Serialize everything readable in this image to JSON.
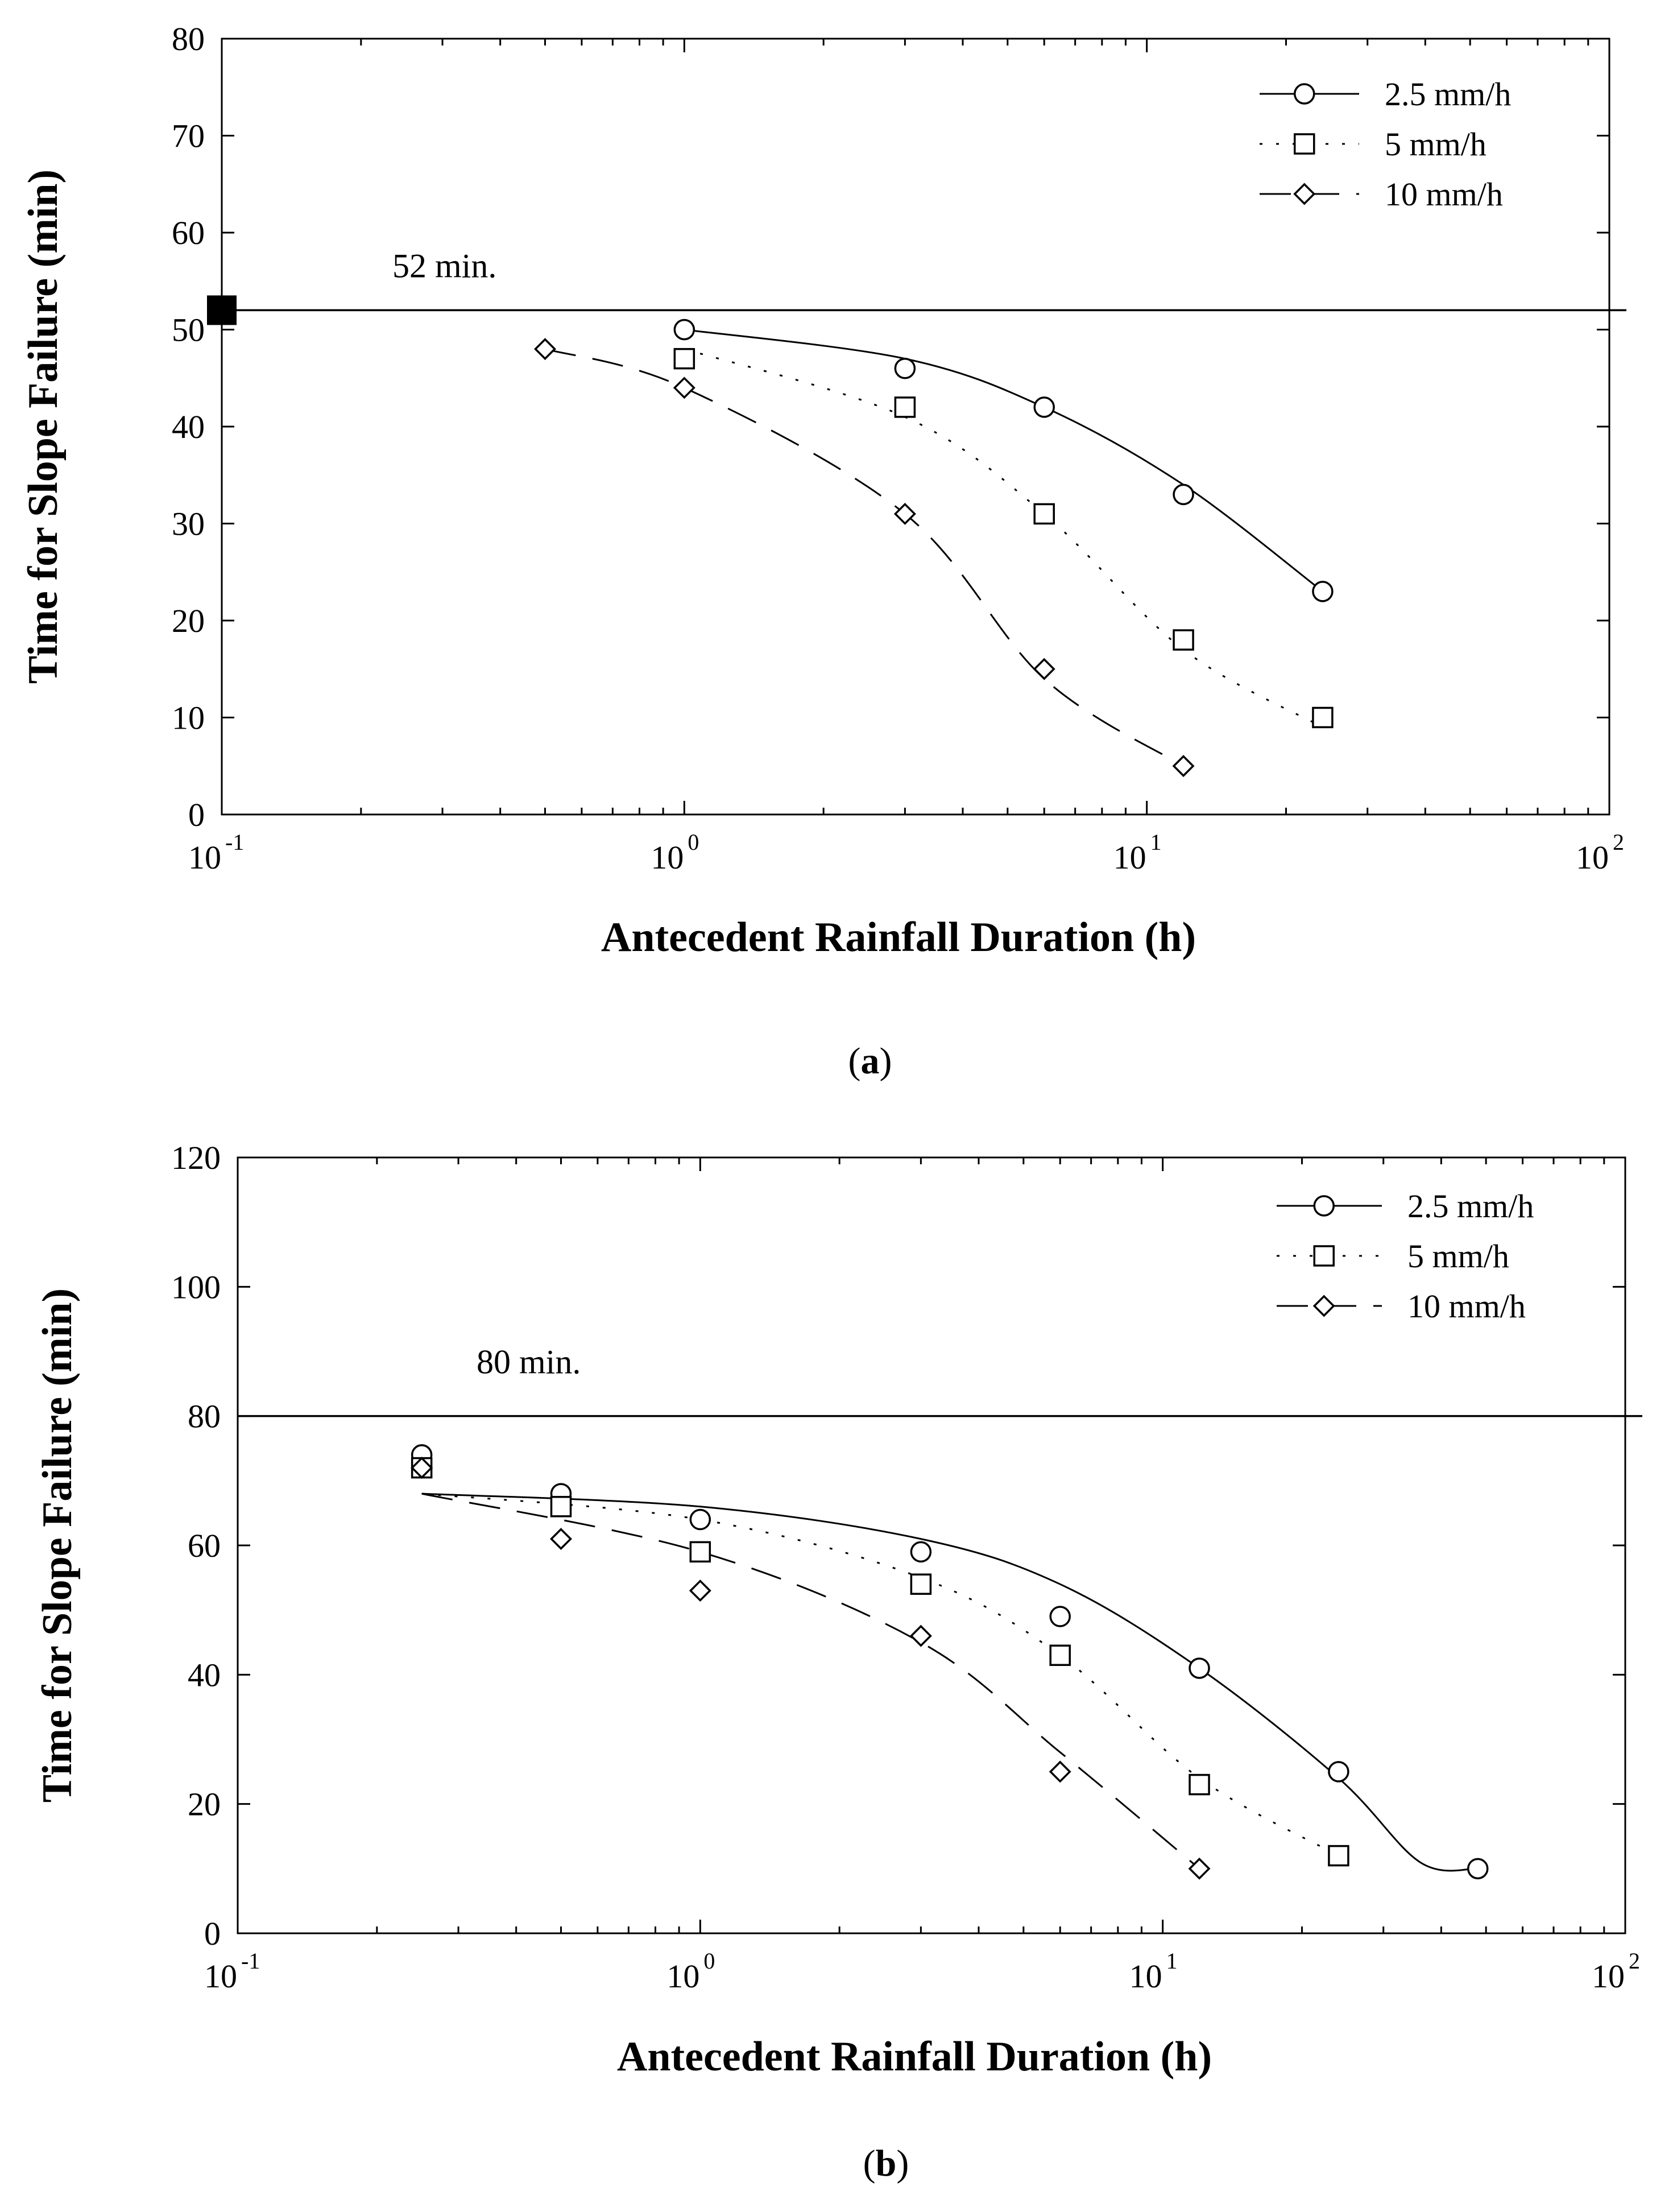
{
  "chart_data": [
    {
      "type": "scatter",
      "panel": "a",
      "caption": "(a)",
      "xlabel": "Antecedent Rainfall Duration (h)",
      "ylabel": "Time for Slope Failure (min)",
      "xscale": "log",
      "xlim": [
        0.1,
        100
      ],
      "ylim": [
        0,
        80
      ],
      "yticks": [
        0,
        10,
        20,
        30,
        40,
        50,
        60,
        70,
        80
      ],
      "xticks": [
        {
          "value": 0.1,
          "base": "10",
          "exp": "-1"
        },
        {
          "value": 1,
          "base": "10",
          "exp": "0"
        },
        {
          "value": 10,
          "base": "10",
          "exp": "1"
        },
        {
          "value": 100,
          "base": "10",
          "exp": "2"
        }
      ],
      "reference_line": {
        "y": 52,
        "label": "52 min.",
        "marker_x": 0.1
      },
      "legend_position": "top-right",
      "series": [
        {
          "name": "2.5 mm/h",
          "marker": "circle",
          "line": "solid",
          "x": [
            1,
            3,
            6,
            12,
            24
          ],
          "y": [
            50,
            46,
            42,
            33,
            23
          ],
          "fit": {
            "x": [
              1,
              3,
              6,
              12,
              24
            ],
            "y": [
              50,
              47,
              42,
              34,
              23
            ]
          }
        },
        {
          "name": "5 mm/h",
          "marker": "square",
          "line": "dotted",
          "x": [
            1,
            3,
            6,
            12,
            24
          ],
          "y": [
            47,
            42,
            31,
            18,
            10
          ],
          "fit": {
            "x": [
              1,
              3,
              6,
              12,
              24
            ],
            "y": [
              48,
              41,
              31,
              17,
              9
            ]
          }
        },
        {
          "name": "10 mm/h",
          "marker": "diamond",
          "line": "dashed",
          "x": [
            0.5,
            1,
            3,
            6,
            12
          ],
          "y": [
            48,
            44,
            31,
            15,
            5
          ],
          "fit": {
            "x": [
              0.5,
              1,
              3,
              6,
              12
            ],
            "y": [
              48,
              44,
              31,
              14,
              5
            ]
          }
        }
      ]
    },
    {
      "type": "scatter",
      "panel": "b",
      "caption": "(b)",
      "xlabel": "Antecedent Rainfall Duration (h)",
      "ylabel": "Time for Slope Failure (min)",
      "xscale": "log",
      "xlim": [
        0.1,
        100
      ],
      "ylim": [
        0,
        120
      ],
      "yticks": [
        0,
        20,
        40,
        60,
        80,
        100,
        120
      ],
      "xticks": [
        {
          "value": 0.1,
          "base": "10",
          "exp": "-1"
        },
        {
          "value": 1,
          "base": "10",
          "exp": "0"
        },
        {
          "value": 10,
          "base": "10",
          "exp": "1"
        },
        {
          "value": 100,
          "base": "10",
          "exp": "2"
        }
      ],
      "reference_line": {
        "y": 80,
        "label": "80 min."
      },
      "legend_position": "top-right",
      "series": [
        {
          "name": "2.5 mm/h",
          "marker": "circle",
          "line": "solid",
          "x": [
            0.25,
            0.5,
            1,
            3,
            6,
            12,
            24,
            48
          ],
          "y": [
            74,
            68,
            64,
            59,
            49,
            41,
            25,
            10
          ],
          "fit": {
            "x": [
              0.25,
              1,
              3,
              6,
              12,
              24,
              36,
              48
            ],
            "y": [
              68,
              66,
              61,
              54,
              41,
              24,
              11,
              10
            ]
          }
        },
        {
          "name": "5 mm/h",
          "marker": "square",
          "line": "dotted",
          "x": [
            0.25,
            0.5,
            1,
            3,
            6,
            12,
            24
          ],
          "y": [
            72,
            66,
            59,
            54,
            43,
            23,
            12
          ],
          "fit": {
            "x": [
              0.25,
              1,
              3,
              6,
              12,
              24
            ],
            "y": [
              68,
              64,
              55,
              43,
              24,
              12
            ]
          }
        },
        {
          "name": "10 mm/h",
          "marker": "diamond",
          "line": "dashed",
          "x": [
            0.25,
            0.5,
            1,
            3,
            6,
            12
          ],
          "y": [
            72,
            61,
            53,
            46,
            25,
            10
          ],
          "fit": {
            "x": [
              0.25,
              1,
              3,
              6,
              12
            ],
            "y": [
              68,
              59,
              45,
              28,
              10
            ]
          }
        }
      ]
    }
  ]
}
